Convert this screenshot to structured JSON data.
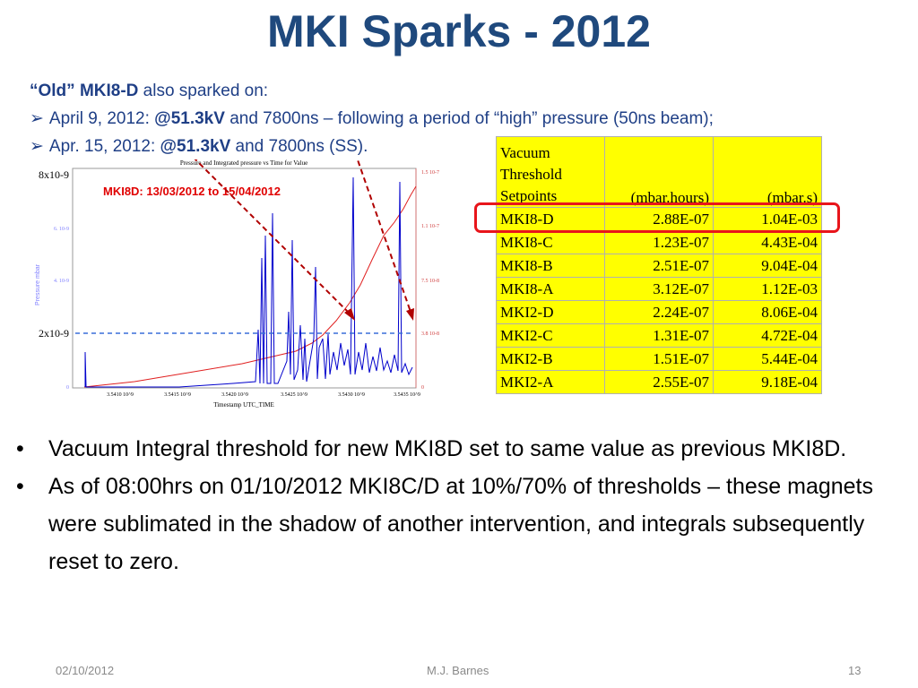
{
  "slide": {
    "title": "MKI Sparks - 2012",
    "intro": {
      "line1_a": "“Old” MKI8-D",
      "line1_b": " also sparked on:",
      "item1_a": "April 9, 2012: ",
      "item1_b": "@51.3kV",
      "item1_c": " and 7800ns – following a period of “high” pressure (50ns beam);",
      "item2_a": "Apr. 15, 2012: ",
      "item2_b": "@51.3kV",
      "item2_c": " and 7800ns (SS)."
    },
    "bullets": [
      "Vacuum Integral threshold for new MKI8D set to same value as previous MKI8D.",
      "As of 08:00hrs on 01/10/2012 MKI8C/D at 10%/70% of thresholds – these magnets were sublimated in the shadow of another intervention, and integrals subsequently reset to zero."
    ],
    "footer": {
      "date": "02/10/2012",
      "author": "M.J. Barnes",
      "page": "13"
    }
  },
  "table": {
    "header": [
      "Vacuum Threshold Setpoints",
      "(mbar.hours)",
      "(mbar.s)"
    ],
    "rows": [
      [
        "MKI8-D",
        "2.88E-07",
        "1.04E-03"
      ],
      [
        "MKI8-C",
        "1.23E-07",
        "4.43E-04"
      ],
      [
        "MKI8-B",
        "2.51E-07",
        "9.04E-04"
      ],
      [
        "MKI8-A",
        "3.12E-07",
        "1.12E-03"
      ],
      [
        "MKI2-D",
        "2.24E-07",
        "8.06E-04"
      ],
      [
        "MKI2-C",
        "1.31E-07",
        "4.72E-04"
      ],
      [
        "MKI2-B",
        "1.51E-07",
        "5.44E-04"
      ],
      [
        "MKI2-A",
        "2.55E-07",
        "9.18E-04"
      ]
    ],
    "highlighted_row": "MKI8-D"
  },
  "chart_data": {
    "type": "line",
    "title": "Pressure and Integrated pressure vs Time for Value",
    "annotation": "MKI8D: 13/03/2012 to 15/04/2012",
    "ylabel": "Pressure mbar",
    "xlabel": "Timestamp UTC_TIME",
    "y_left_ticks": [
      "8x10-9",
      "6. 10-9",
      "4. 10-9",
      "2x10-9",
      "0"
    ],
    "y_right_ticks": [
      "1.5 10-7",
      "1.1 10-7",
      "7.5 10-8",
      "3.8 10-8",
      "0"
    ],
    "x_ticks": [
      "3.5410 10^9",
      "3.5415 10^9",
      "3.5420 10^9",
      "3.5425 10^9",
      "3.5430 10^9",
      "3.5435 10^9"
    ],
    "threshold_line": "2x10-9",
    "colors": {
      "pressure": "#0000CC",
      "integral": "#E02020",
      "threshold": "#3A6FD8",
      "arrows": "#B00000"
    }
  }
}
